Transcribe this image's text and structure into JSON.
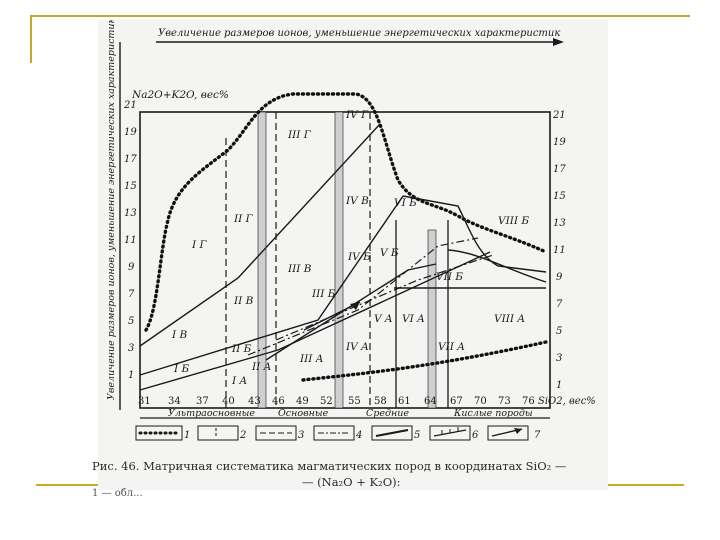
{
  "slide": {
    "frame_color": "#c8a92c"
  },
  "diagram": {
    "top_axis_title": "Увеличение размеров ионов, уменьшение энергетических характеристик",
    "left_axis_title": "Увеличение размеров ионов, уменьшение энергетических характеристик",
    "y_title": "Na2O+K2O, вес%",
    "x_title": "SiO2, вес%",
    "x_ticks": [
      "31",
      "34",
      "37",
      "40",
      "43",
      "46",
      "49",
      "52",
      "55",
      "58",
      "61",
      "64",
      "67",
      "70",
      "73",
      "76"
    ],
    "y_ticks_left": [
      "1",
      "3",
      "5",
      "7",
      "9",
      "11",
      "13",
      "15",
      "17",
      "19",
      "21"
    ],
    "y_ticks_right": [
      "1",
      "3",
      "5",
      "7",
      "9",
      "11",
      "13",
      "15",
      "17",
      "19",
      "21"
    ],
    "rock_groups": [
      "Ультраосновные",
      "Основные",
      "Средние",
      "Кислые породы"
    ],
    "field_labels": [
      "I A",
      "I Б",
      "I В",
      "I Г",
      "II A",
      "II Б",
      "II В",
      "II Г",
      "III A",
      "III Б",
      "III В",
      "III Г",
      "IV A",
      "IV Б",
      "IV В",
      "IV Г",
      "V A",
      "V Б",
      "VI A",
      "VI Б",
      "VII A",
      "VII Б",
      "VIII A",
      "VIII Б"
    ],
    "legend": [
      "1",
      "2",
      "3",
      "4",
      "5",
      "6",
      "7"
    ]
  },
  "caption": {
    "line1": "Рис. 46.  Матричная  систематика  магматических  пород  в  координатах  SiO₂ —",
    "line2": "— (Na₂O + K₂O):"
  },
  "tail_text": "1 — обл..."
}
